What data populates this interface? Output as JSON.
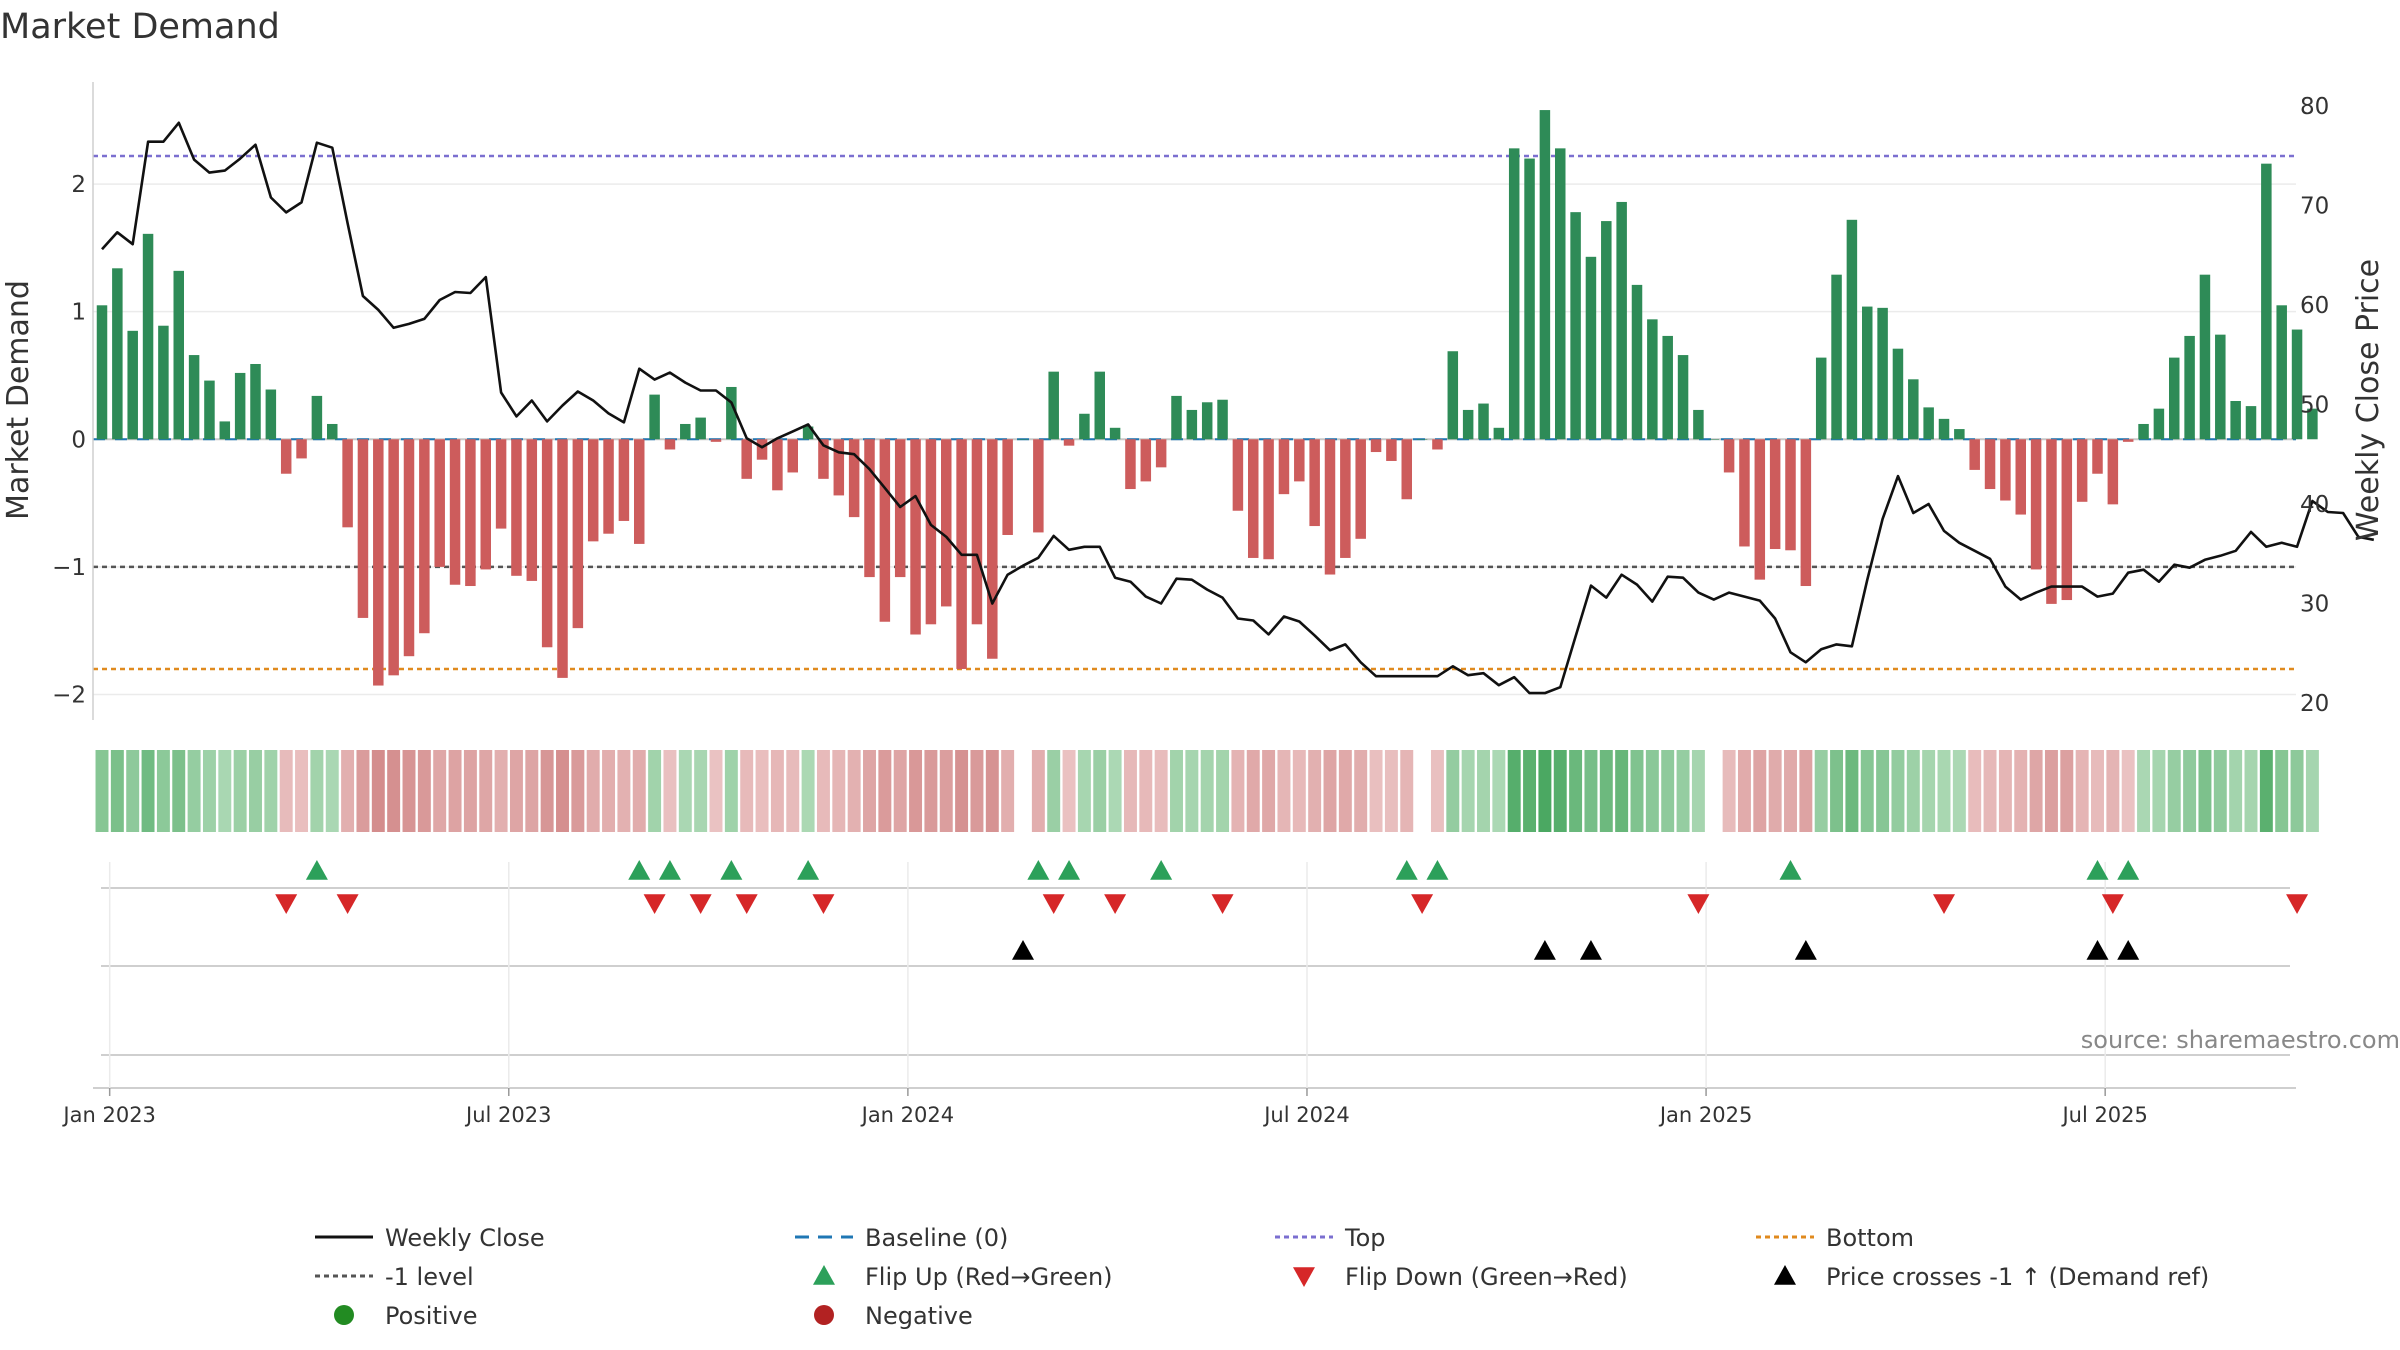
{
  "chart_data": {
    "type": "bar",
    "title": "Market Demand",
    "ylabel_left": "Market Demand",
    "ylabel_right": "Weekly Close Price",
    "source": "source: sharemaestro.com",
    "left_ylim": [
      -2.2,
      2.8
    ],
    "right_ylim": [
      18.3,
      82.4
    ],
    "left_ticks": [
      "2",
      "1",
      "0",
      "−1",
      "−2"
    ],
    "left_tick_values": [
      2,
      1,
      0,
      -1,
      -2
    ],
    "right_ticks": [
      "80",
      "70",
      "60",
      "50",
      "40",
      "30",
      "20"
    ],
    "right_tick_values": [
      80,
      70,
      60,
      50,
      40,
      30,
      20
    ],
    "x_ticks": [
      "Jan 2023",
      "Jul 2023",
      "Jan 2024",
      "Jul 2024",
      "Jan 2025",
      "Jul 2025"
    ],
    "x_tick_weeks": [
      0.5,
      26.5,
      52.5,
      78.5,
      104.5,
      130.5
    ],
    "levels": {
      "top": 2.22,
      "minus_one": -1.0,
      "bottom": -1.8,
      "baseline": 0
    },
    "demand": [
      1.05,
      1.34,
      0.85,
      1.61,
      0.89,
      1.32,
      0.66,
      0.46,
      0.14,
      0.52,
      0.59,
      0.39,
      -0.27,
      -0.15,
      0.34,
      0.12,
      -0.69,
      -1.4,
      -1.93,
      -1.85,
      -1.7,
      -1.52,
      -1.0,
      -1.14,
      -1.15,
      -1.02,
      -0.7,
      -1.07,
      -1.11,
      -1.63,
      -1.87,
      -1.48,
      -0.8,
      -0.74,
      -0.64,
      -0.82,
      0.35,
      -0.08,
      0.12,
      0.17,
      -0.02,
      0.41,
      -0.31,
      -0.16,
      -0.4,
      -0.26,
      0.1,
      -0.31,
      -0.44,
      -0.61,
      -1.08,
      -1.43,
      -1.08,
      -1.53,
      -1.45,
      -1.31,
      -1.8,
      -1.45,
      -1.72,
      -0.75,
      0.0,
      -0.73,
      0.53,
      -0.05,
      0.2,
      0.53,
      0.09,
      -0.39,
      -0.33,
      -0.22,
      0.34,
      0.23,
      0.29,
      0.31,
      -0.56,
      -0.93,
      -0.94,
      -0.43,
      -0.33,
      -0.68,
      -1.06,
      -0.93,
      -0.78,
      -0.1,
      -0.17,
      -0.47,
      0.0,
      -0.08,
      0.69,
      0.23,
      0.28,
      0.09,
      2.28,
      2.2,
      2.58,
      2.28,
      1.78,
      1.43,
      1.71,
      1.86,
      1.21,
      0.94,
      0.81,
      0.66,
      0.23,
      0.0,
      -0.26,
      -0.84,
      -1.1,
      -0.86,
      -0.87,
      -1.15,
      0.64,
      1.29,
      1.72,
      1.04,
      1.03,
      0.71,
      0.47,
      0.25,
      0.16,
      0.08,
      -0.24,
      -0.39,
      -0.48,
      -0.59,
      -1.02,
      -1.29,
      -1.26,
      -0.49,
      -0.27,
      -0.51,
      -0.02,
      0.12,
      0.24,
      0.64,
      0.81,
      1.29,
      0.82,
      0.3,
      0.26,
      2.16,
      1.05,
      0.86,
      0.24
    ],
    "weekly_close": [
      65.6,
      67.3,
      66.1,
      76.4,
      76.4,
      78.3,
      74.6,
      73.3,
      73.5,
      74.7,
      76.1,
      70.8,
      69.3,
      70.3,
      76.3,
      75.8,
      68.2,
      60.9,
      59.5,
      57.7,
      58.1,
      58.6,
      60.5,
      61.3,
      61.2,
      62.8,
      51.2,
      48.8,
      50.4,
      48.3,
      49.9,
      51.3,
      50.4,
      49.1,
      48.2,
      53.6,
      52.5,
      53.2,
      52.2,
      51.4,
      51.4,
      50.2,
      46.6,
      45.7,
      46.6,
      47.3,
      48.0,
      45.9,
      45.2,
      45.0,
      43.5,
      41.6,
      39.7,
      40.8,
      37.9,
      36.7,
      34.9,
      34.9,
      30.0,
      32.9,
      33.8,
      34.6,
      36.8,
      35.4,
      35.7,
      35.7,
      32.6,
      32.2,
      30.7,
      30.0,
      32.5,
      32.4,
      31.4,
      30.6,
      28.5,
      28.3,
      26.9,
      28.7,
      28.2,
      26.8,
      25.3,
      25.9,
      24.1,
      22.7,
      22.7,
      22.7,
      22.7,
      22.7,
      23.7,
      22.8,
      23.0,
      21.8,
      22.6,
      21.0,
      21.0,
      21.6,
      26.7,
      31.8,
      30.6,
      32.9,
      31.9,
      30.2,
      32.7,
      32.6,
      31.1,
      30.4,
      31.1,
      30.7,
      30.3,
      28.5,
      25.1,
      24.1,
      25.4,
      25.9,
      25.7,
      32.4,
      38.5,
      42.8,
      39.1,
      40.0,
      37.3,
      36.1,
      35.3,
      34.5,
      31.7,
      30.4,
      31.1,
      31.7,
      31.7,
      31.7,
      30.7,
      31.0,
      33.1,
      33.4,
      32.2,
      33.9,
      33.6,
      34.4,
      34.8,
      35.3,
      37.2,
      35.7,
      36.1,
      35.7,
      40.3,
      39.2,
      39.1,
      36.7,
      36.4
    ],
    "flip_up_weeks": [
      14,
      35,
      37,
      41,
      46,
      61,
      63,
      69,
      85,
      87,
      110,
      130,
      132
    ],
    "flip_down_weeks": [
      12,
      16,
      36,
      39,
      42,
      47,
      62,
      66,
      73,
      86,
      104,
      120,
      131,
      143
    ],
    "price_cross_weeks": [
      60,
      94,
      97,
      111,
      130,
      132
    ],
    "legend": [
      {
        "label": "Weekly Close",
        "symbol": "line-solid",
        "color": "#111111"
      },
      {
        "label": "Baseline (0)",
        "symbol": "line-dash",
        "color": "#1f77b4"
      },
      {
        "label": "Top",
        "symbol": "line-dot",
        "color": "#7b6fd0"
      },
      {
        "label": "Bottom",
        "symbol": "line-dot",
        "color": "#e08a1e"
      },
      {
        "label": "-1 level",
        "symbol": "line-dot",
        "color": "#555555"
      },
      {
        "label": "Flip Up (Red→Green)",
        "symbol": "tri-up",
        "color": "#2ca05a"
      },
      {
        "label": "Flip Down (Green→Red)",
        "symbol": "tri-down",
        "color": "#d62728"
      },
      {
        "label": "Price crosses -1 ↑ (Demand ref)",
        "symbol": "tri-up",
        "color": "#000000"
      },
      {
        "label": "Positive",
        "symbol": "dot",
        "color": "#228b22"
      },
      {
        "label": "Negative",
        "symbol": "dot",
        "color": "#b22222"
      }
    ]
  },
  "colors": {
    "pos_bar": "#2e8b57",
    "neg_bar": "#cd5c5c",
    "line": "#111111",
    "grid": "#ebebeb",
    "axis": "#cfcfcf"
  }
}
